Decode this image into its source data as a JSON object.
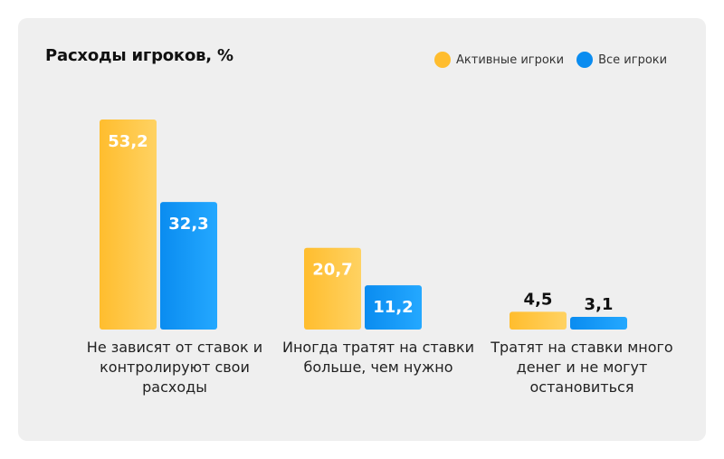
{
  "colors": {
    "active": "#ffbd2e",
    "active_light": "#ffd262",
    "all": "#0a8cf0",
    "all_light": "#24a8ff",
    "card_bg": "#efefef"
  },
  "chart_data": {
    "type": "bar",
    "title": "Расходы игроков, %",
    "categories": [
      "Не зависят от ставок и контролируют свои расходы",
      "Иногда тратят на ставки больше, чем нужно",
      "Тратят на ставки много денег и не могут остановиться"
    ],
    "series": [
      {
        "name": "Активные игроки",
        "values": [
          53.2,
          20.7,
          4.5
        ],
        "labels": [
          "53,2",
          "20,7",
          "4,5"
        ]
      },
      {
        "name": "Все игроки",
        "values": [
          32.3,
          11.2,
          3.1
        ],
        "labels": [
          "32,3",
          "11,2",
          "3,1"
        ]
      }
    ],
    "ylim": [
      0,
      53.2
    ],
    "grid": false,
    "legend_position": "top-right"
  }
}
